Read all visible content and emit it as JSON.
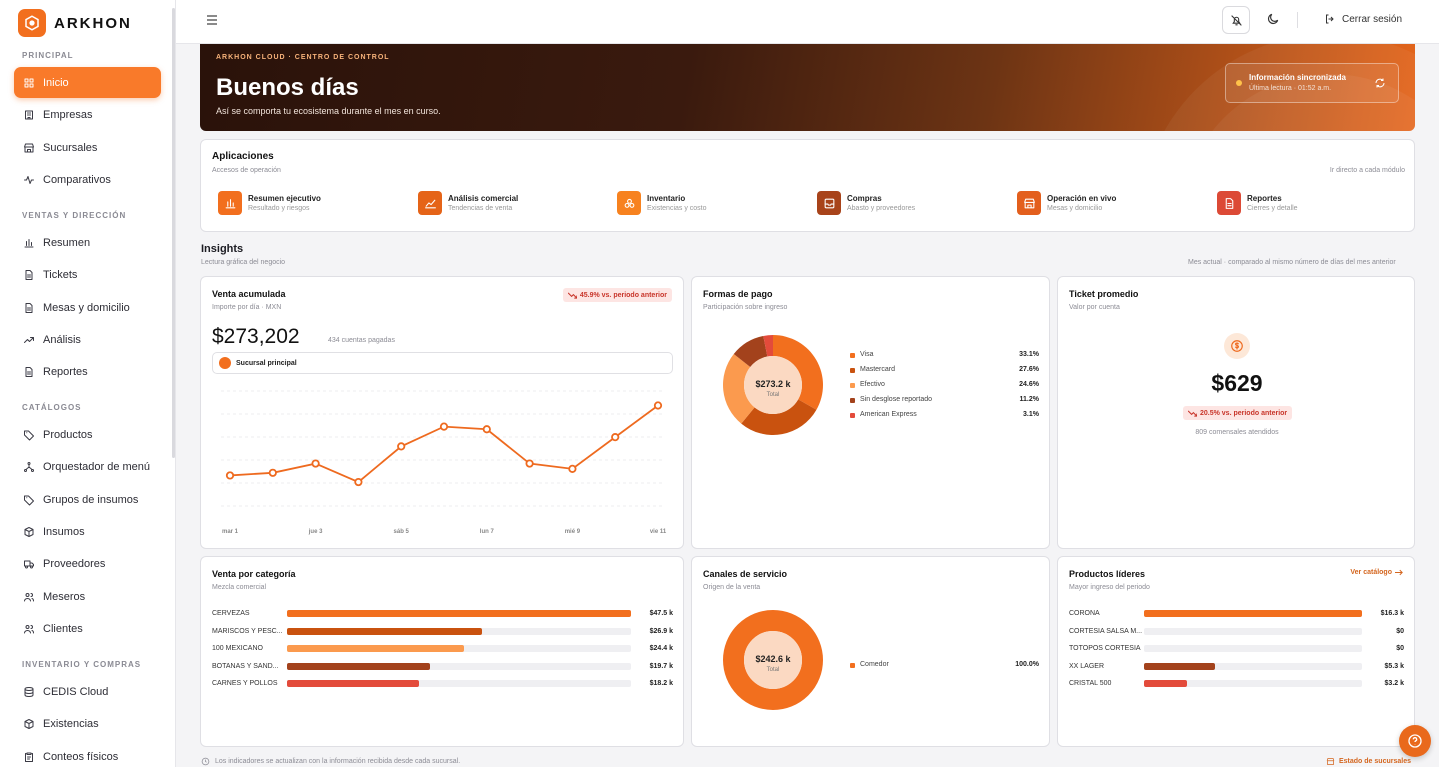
{
  "brand": {
    "name": "ARKHON"
  },
  "sidebar": {
    "sections": [
      {
        "title": "PRINCIPAL",
        "items": [
          {
            "label": "Inicio",
            "icon": "grid-icon",
            "active": true
          },
          {
            "label": "Empresas",
            "icon": "building-icon"
          },
          {
            "label": "Sucursales",
            "icon": "store-icon"
          },
          {
            "label": "Comparativos",
            "icon": "activity-icon"
          }
        ]
      },
      {
        "title": "VENTAS Y DIRECCIÓN",
        "items": [
          {
            "label": "Resumen",
            "icon": "bar-chart-icon"
          },
          {
            "label": "Tickets",
            "icon": "document-icon"
          },
          {
            "label": "Mesas y domicilio",
            "icon": "document-icon"
          },
          {
            "label": "Análisis",
            "icon": "trend-icon"
          },
          {
            "label": "Reportes",
            "icon": "document-icon"
          }
        ]
      },
      {
        "title": "CATÁLOGOS",
        "items": [
          {
            "label": "Productos",
            "icon": "tag-icon"
          },
          {
            "label": "Orquestador de menú",
            "icon": "network-icon"
          },
          {
            "label": "Grupos de insumos",
            "icon": "tag-icon"
          },
          {
            "label": "Insumos",
            "icon": "box-icon"
          },
          {
            "label": "Proveedores",
            "icon": "truck-icon"
          },
          {
            "label": "Meseros",
            "icon": "users-icon"
          },
          {
            "label": "Clientes",
            "icon": "users-icon"
          }
        ]
      },
      {
        "title": "INVENTARIO Y COMPRAS",
        "items": [
          {
            "label": "CEDIS Cloud",
            "icon": "database-icon"
          },
          {
            "label": "Existencias",
            "icon": "box-icon"
          },
          {
            "label": "Conteos físicos",
            "icon": "clipboard-icon"
          }
        ]
      }
    ]
  },
  "topbar": {
    "logout_label": "Cerrar sesión"
  },
  "hero": {
    "eyebrow": "ARKHON CLOUD · CENTRO DE CONTROL",
    "title": "Buenos días",
    "subtitle": "Así se comporta tu ecosistema durante el mes en curso.",
    "sync_title": "Información sincronizada",
    "sync_sub": "Última lectura · 01:52 a.m."
  },
  "apps": {
    "title": "Aplicaciones",
    "subtitle": "Accesos de operación",
    "right_note": "Ir directo a cada módulo",
    "items": [
      {
        "name": "Resumen ejecutivo",
        "desc": "Resultado y riesgos",
        "color": "#f26f1e",
        "icon": "bar-chart-icon"
      },
      {
        "name": "Análisis comercial",
        "desc": "Tendencias de venta",
        "color": "#e56418",
        "icon": "area-chart-icon"
      },
      {
        "name": "Inventario",
        "desc": "Existencias y costo",
        "color": "#f7821f",
        "icon": "boxes-icon"
      },
      {
        "name": "Compras",
        "desc": "Abasto y proveedores",
        "color": "#a8431a",
        "icon": "inbox-icon"
      },
      {
        "name": "Operación en vivo",
        "desc": "Mesas y domicilio",
        "color": "#e35f1d",
        "icon": "store-icon"
      },
      {
        "name": "Reportes",
        "desc": "Cierres y detalle",
        "color": "#dc4a36",
        "icon": "document-icon"
      }
    ]
  },
  "insights": {
    "title": "Insights",
    "subtitle": "Lectura gráfica del negocio",
    "right_note": "Mes actual · comparado al mismo número de días del mes anterior"
  },
  "venta": {
    "title": "Venta acumulada",
    "subtitle": "Importe por día · MXN",
    "badge": "45.9% vs. periodo anterior",
    "amount": "$273,202",
    "count": "434 cuentas pagadas",
    "branch": "Sucursal principal"
  },
  "chart_data": [
    {
      "type": "line",
      "x_ticks": [
        "mar 1",
        "jue 3",
        "sáb 5",
        "lun 7",
        "mié 9",
        "vie 11"
      ],
      "values": [
        0.33,
        0.35,
        0.42,
        0.28,
        0.55,
        0.7,
        0.68,
        0.42,
        0.38,
        0.62,
        0.86
      ],
      "ylim": [
        0,
        1
      ],
      "color": "#ee6a1f",
      "grid": true
    },
    {
      "type": "pie",
      "center_value": "$273.2 k",
      "center_label": "Total",
      "slices": [
        {
          "label": "Visa",
          "pct": "33.1%",
          "value": 33.1,
          "color": "#f26f1e"
        },
        {
          "label": "Mastercard",
          "pct": "27.6%",
          "value": 27.6,
          "color": "#c9520f"
        },
        {
          "label": "Efectivo",
          "pct": "24.6%",
          "value": 24.6,
          "color": "#fb9a4e"
        },
        {
          "label": "Sin desglose reportado",
          "pct": "11.2%",
          "value": 11.2,
          "color": "#a3421c"
        },
        {
          "label": "American Express",
          "pct": "3.1%",
          "value": 3.1,
          "color": "#e34b3b"
        }
      ]
    },
    {
      "type": "bar",
      "categories": [
        "CERVEZAS",
        "MARISCOS Y PESC...",
        "100 MEXICANO",
        "BOTANAS Y SAND...",
        "CARNES Y POLLOS"
      ],
      "labels": [
        "$47.5 k",
        "$26.9 k",
        "$24.4 k",
        "$19.7 k",
        "$18.2 k"
      ],
      "values": [
        47.5,
        26.9,
        24.4,
        19.7,
        18.2
      ],
      "colors": [
        "#f26f1e",
        "#c9520f",
        "#fb9a4e",
        "#a3421c",
        "#e34b3b"
      ]
    },
    {
      "type": "pie",
      "center_value": "$242.6 k",
      "center_label": "Total",
      "slices": [
        {
          "label": "Comedor",
          "pct": "100.0%",
          "value": 100,
          "color": "#f26f1e"
        }
      ]
    },
    {
      "type": "bar",
      "categories": [
        "CORONA",
        "CORTESIA SALSA M...",
        "TOTOPOS CORTESIA",
        "XX LAGER",
        "CRISTAL 500"
      ],
      "labels": [
        "$16.3 k",
        "$0",
        "$0",
        "$5.3 k",
        "$3.2 k"
      ],
      "values": [
        16.3,
        0,
        0,
        5.3,
        3.2
      ],
      "colors": [
        "#f26f1e",
        "#c9520f",
        "#fb9a4e",
        "#a3421c",
        "#e34b3b"
      ]
    }
  ],
  "formas": {
    "title": "Formas de pago",
    "subtitle": "Participación sobre ingreso"
  },
  "ticket": {
    "title": "Ticket promedio",
    "subtitle": "Valor por cuenta",
    "amount": "$629",
    "badge": "20.5% vs. periodo anterior",
    "note": "809 comensales atendidos"
  },
  "categoria": {
    "title": "Venta por categoría",
    "subtitle": "Mezcla comercial"
  },
  "canales": {
    "title": "Canales de servicio",
    "subtitle": "Origen de la venta"
  },
  "lideres": {
    "title": "Productos líderes",
    "subtitle": "Mayor ingreso del periodo",
    "link": "Ver catálogo"
  },
  "footer": {
    "note": "Los indicadores se actualizan con la información recibida desde cada sucursal.",
    "link": "Estado de sucursales"
  }
}
